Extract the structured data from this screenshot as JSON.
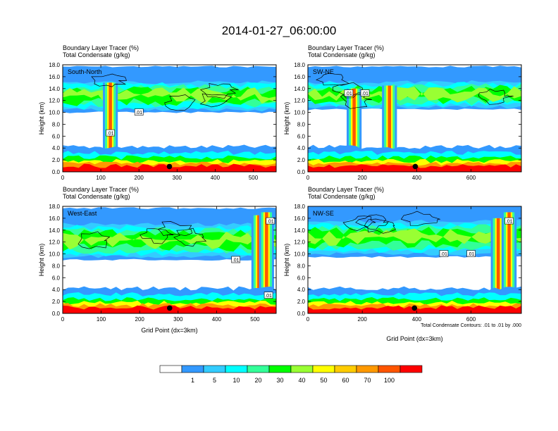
{
  "chart_data": {
    "type": "heatmap",
    "title": "2014-01-27_06:00:00",
    "field_labels": [
      "Boundary Layer Tracer   (%)",
      "Total Condensate   (g/kg)"
    ],
    "ylabel": "Height (km)",
    "xlabel": "Grid Point (dx=3km)",
    "contour_info": "Total Condensate Contours: .01 to .01 by .000",
    "contour_label": ".01",
    "colorbar": {
      "levels": [
        "1",
        "5",
        "10",
        "20",
        "30",
        "40",
        "50",
        "60",
        "70",
        "100"
      ],
      "colors": [
        "#ffffff",
        "#3399ff",
        "#33ccff",
        "#00ffff",
        "#33ff99",
        "#00ff00",
        "#99ff33",
        "#ffff00",
        "#ffcc00",
        "#ff9900",
        "#ff5500",
        "#ff0000"
      ]
    },
    "y_ticks": [
      "0.0",
      "2.0",
      "4.0",
      "6.0",
      "8.0",
      "10.0",
      "12.0",
      "14.0",
      "16.0",
      "18.0"
    ],
    "ylim": [
      0,
      18
    ],
    "panels": [
      {
        "label": "South-North",
        "x_ticks": [
          "0",
          "100",
          "200",
          "300",
          "400",
          "500"
        ],
        "xlim": [
          0,
          560
        ],
        "marker_x": 280,
        "upper_layer": {
          "base": 10.0,
          "top": 15.5
        },
        "convection": [
          {
            "x": 125,
            "top": 15.0
          }
        ],
        "contour_labels": [
          {
            "x": 200,
            "y": 10.0
          },
          {
            "x": 125,
            "y": 6.5
          }
        ]
      },
      {
        "label": "SW-NE",
        "x_ticks": [
          "0",
          "200",
          "400",
          "600"
        ],
        "xlim": [
          0,
          785
        ],
        "marker_x": 395,
        "upper_layer": {
          "base": 10.5,
          "top": 15.5
        },
        "convection": [
          {
            "x": 170,
            "top": 14.0
          },
          {
            "x": 300,
            "top": 14.5
          }
        ],
        "contour_labels": [
          {
            "x": 150,
            "y": 13.2
          },
          {
            "x": 210,
            "y": 13.2
          }
        ]
      },
      {
        "label": "West-East",
        "x_ticks": [
          "0",
          "100",
          "200",
          "300",
          "400",
          "500"
        ],
        "xlim": [
          0,
          555
        ],
        "marker_x": 278,
        "upper_layer": {
          "base": 9.0,
          "top": 15.5
        },
        "convection": [
          {
            "x": 510,
            "top": 16.5
          },
          {
            "x": 530,
            "top": 17.0
          }
        ],
        "contour_labels": [
          {
            "x": 450,
            "y": 9.0
          },
          {
            "x": 535,
            "y": 3.0
          },
          {
            "x": 540,
            "y": 15.5
          }
        ]
      },
      {
        "label": "NW-SE",
        "x_ticks": [
          "0",
          "200",
          "400",
          "600"
        ],
        "xlim": [
          0,
          785
        ],
        "marker_x": 392,
        "upper_layer": {
          "base": 9.5,
          "top": 16.0
        },
        "convection": [
          {
            "x": 700,
            "top": 16.0
          },
          {
            "x": 740,
            "top": 17.0
          }
        ],
        "contour_labels": [
          {
            "x": 500,
            "y": 10.0
          },
          {
            "x": 600,
            "y": 10.0
          },
          {
            "x": 740,
            "y": 15.5
          }
        ]
      }
    ]
  }
}
